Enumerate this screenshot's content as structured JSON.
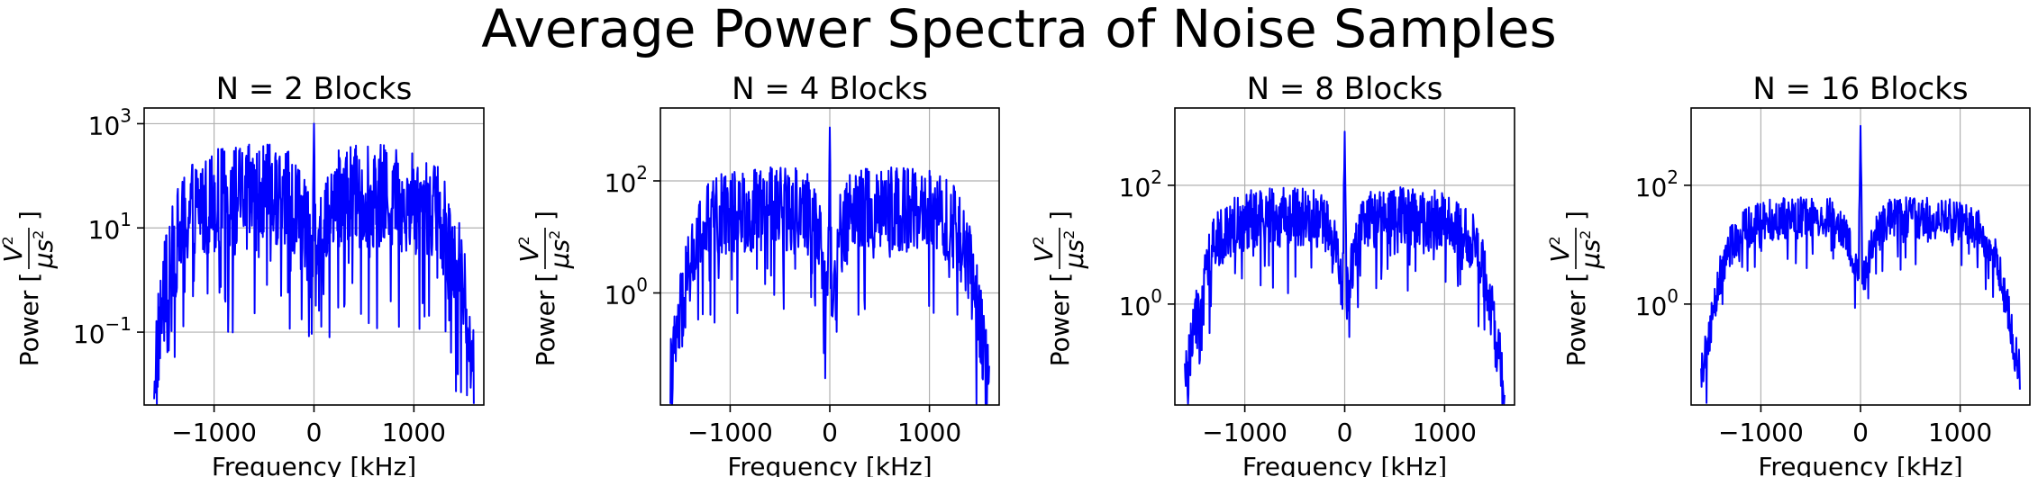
{
  "figure": {
    "title": "Average Power Spectra of Noise Samples"
  },
  "colors": {
    "series": "#0000ff",
    "grid": "#b0b0b0",
    "background": "#ffffff"
  },
  "chart_data": [
    {
      "type": "line",
      "title": "N = 2 Blocks",
      "xlabel": "Frequency [kHz]",
      "ylabel_text": "Power [",
      "ylabel_unit_num": "V",
      "ylabel_unit_num_sup": "2",
      "ylabel_unit_den": "μs",
      "ylabel_unit_den_sup": "2",
      "ylabel_close": "]",
      "yscale": "log",
      "xlim": [
        -1700,
        1700
      ],
      "ylim": [
        0.004,
        2000
      ],
      "xticks": [
        -1000,
        0,
        1000
      ],
      "xtick_labels": [
        "−1000",
        "0",
        "1000"
      ],
      "yticks": [
        0.1,
        10,
        1000
      ],
      "ytick_base": [
        "10",
        "10",
        "10"
      ],
      "ytick_exp": [
        "−1",
        "1",
        "3"
      ],
      "grid": true,
      "series": [
        {
          "color": "#0000ff",
          "x": [
            -1600,
            -1550,
            -1500,
            -1450,
            -1400,
            -1300,
            -1200,
            -1100,
            -1000,
            -900,
            -800,
            -700,
            -600,
            -500,
            -400,
            -300,
            -200,
            -100,
            -50,
            -20,
            0,
            20,
            50,
            100,
            200,
            300,
            400,
            500,
            600,
            700,
            800,
            900,
            1000,
            1100,
            1200,
            1300,
            1400,
            1450,
            1500,
            1550,
            1600
          ],
          "y": [
            0.02,
            0.1,
            0.5,
            1.5,
            4,
            12,
            25,
            30,
            35,
            35,
            38,
            40,
            40,
            42,
            40,
            38,
            30,
            12,
            4,
            1.5,
            1000,
            1.5,
            4,
            12,
            30,
            38,
            40,
            42,
            40,
            40,
            38,
            35,
            35,
            30,
            25,
            12,
            4,
            1.5,
            0.5,
            0.1,
            0.02
          ],
          "spread": 1.0
        }
      ]
    },
    {
      "type": "line",
      "title": "N = 4 Blocks",
      "xlabel": "Frequency [kHz]",
      "ylabel_text": "Power [",
      "ylabel_unit_num": "V",
      "ylabel_unit_num_sup": "2",
      "ylabel_unit_den": "μs",
      "ylabel_unit_den_sup": "2",
      "ylabel_close": "]",
      "yscale": "log",
      "xlim": [
        -1700,
        1700
      ],
      "ylim": [
        0.01,
        2000
      ],
      "xticks": [
        -1000,
        0,
        1000
      ],
      "xtick_labels": [
        "−1000",
        "0",
        "1000"
      ],
      "yticks": [
        1,
        100
      ],
      "ytick_base": [
        "10",
        "10"
      ],
      "ytick_exp": [
        "0",
        "2"
      ],
      "grid": true,
      "series": [
        {
          "color": "#0000ff",
          "x": [
            -1600,
            -1550,
            -1500,
            -1450,
            -1400,
            -1300,
            -1200,
            -1100,
            -1000,
            -900,
            -800,
            -700,
            -600,
            -500,
            -400,
            -300,
            -200,
            -100,
            -50,
            -20,
            0,
            20,
            50,
            100,
            200,
            300,
            400,
            500,
            600,
            700,
            800,
            900,
            1000,
            1100,
            1200,
            1300,
            1400,
            1450,
            1500,
            1550,
            1600
          ],
          "y": [
            0.03,
            0.1,
            0.4,
            1.2,
            3,
            10,
            20,
            25,
            28,
            30,
            30,
            32,
            32,
            32,
            32,
            30,
            25,
            10,
            3,
            1,
            900,
            1,
            3,
            10,
            25,
            30,
            32,
            32,
            32,
            32,
            30,
            30,
            28,
            25,
            20,
            10,
            3,
            1.2,
            0.4,
            0.1,
            0.03
          ],
          "spread": 0.75
        }
      ]
    },
    {
      "type": "line",
      "title": "N = 8 Blocks",
      "xlabel": "Frequency [kHz]",
      "ylabel_text": "Power [",
      "ylabel_unit_num": "V",
      "ylabel_unit_num_sup": "2",
      "ylabel_unit_den": "μs",
      "ylabel_unit_den_sup": "2",
      "ylabel_close": "]",
      "yscale": "log",
      "xlim": [
        -1700,
        1700
      ],
      "ylim": [
        0.02,
        2000
      ],
      "xticks": [
        -1000,
        0,
        1000
      ],
      "xtick_labels": [
        "−1000",
        "0",
        "1000"
      ],
      "yticks": [
        1,
        100
      ],
      "ytick_base": [
        "10",
        "10"
      ],
      "ytick_exp": [
        "0",
        "2"
      ],
      "grid": true,
      "series": [
        {
          "color": "#0000ff",
          "x": [
            -1600,
            -1550,
            -1500,
            -1450,
            -1400,
            -1300,
            -1200,
            -1100,
            -1000,
            -900,
            -800,
            -700,
            -600,
            -500,
            -400,
            -300,
            -200,
            -100,
            -50,
            -20,
            0,
            20,
            50,
            100,
            200,
            300,
            400,
            500,
            600,
            700,
            800,
            900,
            1000,
            1100,
            1200,
            1300,
            1400,
            1450,
            1500,
            1550,
            1600
          ],
          "y": [
            0.05,
            0.12,
            0.4,
            1.2,
            3,
            10,
            17,
            22,
            25,
            27,
            28,
            28,
            30,
            30,
            30,
            28,
            22,
            8,
            3,
            1.5,
            800,
            1.5,
            3,
            8,
            22,
            28,
            30,
            30,
            30,
            28,
            28,
            27,
            25,
            22,
            17,
            10,
            3,
            1.2,
            0.4,
            0.12,
            0.05
          ],
          "spread": 0.5
        }
      ]
    },
    {
      "type": "line",
      "title": "N = 16 Blocks",
      "xlabel": "Frequency [kHz]",
      "ylabel_text": "Power [",
      "ylabel_unit_num": "V",
      "ylabel_unit_num_sup": "2",
      "ylabel_unit_den": "μs",
      "ylabel_unit_den_sup": "2",
      "ylabel_close": "]",
      "yscale": "log",
      "xlim": [
        -1700,
        1700
      ],
      "ylim": [
        0.02,
        2000
      ],
      "xticks": [
        -1000,
        0,
        1000
      ],
      "xtick_labels": [
        "−1000",
        "0",
        "1000"
      ],
      "yticks": [
        1,
        100
      ],
      "ytick_base": [
        "10",
        "10"
      ],
      "ytick_exp": [
        "0",
        "2"
      ],
      "grid": true,
      "series": [
        {
          "color": "#0000ff",
          "x": [
            -1600,
            -1550,
            -1500,
            -1450,
            -1400,
            -1300,
            -1200,
            -1100,
            -1000,
            -900,
            -800,
            -700,
            -600,
            -500,
            -400,
            -300,
            -200,
            -100,
            -50,
            -20,
            0,
            20,
            50,
            100,
            200,
            300,
            400,
            500,
            600,
            700,
            800,
            900,
            1000,
            1100,
            1200,
            1300,
            1400,
            1450,
            1500,
            1550,
            1600
          ],
          "y": [
            0.07,
            0.15,
            0.5,
            1.3,
            3.5,
            10,
            17,
            21,
            24,
            26,
            27,
            28,
            29,
            30,
            30,
            28,
            22,
            8,
            3.5,
            2.5,
            1000,
            2.5,
            3.5,
            8,
            22,
            28,
            30,
            30,
            29,
            28,
            27,
            26,
            24,
            21,
            17,
            10,
            3.5,
            1.3,
            0.5,
            0.15,
            0.07
          ],
          "spread": 0.35
        }
      ]
    }
  ]
}
